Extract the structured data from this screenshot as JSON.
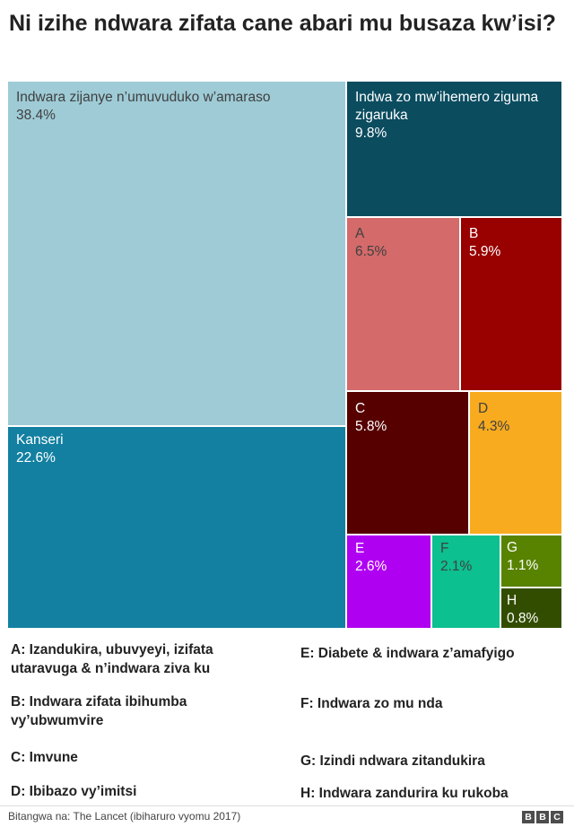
{
  "title": "Ni izihe ndwara zifata cane abari mu busaza kw’isi?",
  "chart_data": {
    "type": "treemap",
    "title": "Ni izihe ndwara zifata cane abari mu busaza kw’isi?",
    "unit": "%",
    "items": [
      {
        "id": "cardio",
        "label": "Indwara zijanye n’umuvuduko w’amaraso",
        "value": 38.4,
        "color": "#9ecbd6",
        "text": "light"
      },
      {
        "id": "cancer",
        "label": "Kanseri",
        "value": 22.6,
        "color": "#1380a1",
        "text": "dark"
      },
      {
        "id": "resp",
        "label": "Indwa zo mw’ihemero ziguma zigaruka",
        "value": 9.8,
        "color": "#0b4c5f",
        "text": "dark"
      },
      {
        "id": "A",
        "label": "A",
        "value": 6.5,
        "color": "#d46a6a",
        "text": "light"
      },
      {
        "id": "B",
        "label": "B",
        "value": 5.9,
        "color": "#990000",
        "text": "dark"
      },
      {
        "id": "C",
        "label": "C",
        "value": 5.8,
        "color": "#560000",
        "text": "dark"
      },
      {
        "id": "D",
        "label": "D",
        "value": 4.3,
        "color": "#f8ab1f",
        "text": "light"
      },
      {
        "id": "E",
        "label": "E",
        "value": 2.6,
        "color": "#b000f2",
        "text": "dark"
      },
      {
        "id": "F",
        "label": "F",
        "value": 2.1,
        "color": "#0cc090",
        "text": "light"
      },
      {
        "id": "G",
        "label": "G",
        "value": 1.1,
        "color": "#588300",
        "text": "dark"
      },
      {
        "id": "H",
        "label": "H",
        "value": 0.8,
        "color": "#334d00",
        "text": "dark"
      }
    ]
  },
  "legend": [
    {
      "key": "A",
      "text": "A: Izandukira, ubuvyeyi, izifata utaravuga & n’indwara ziva ku"
    },
    {
      "key": "B",
      "text": "B: Indwara zifata ibihumba vy’ubwumvire"
    },
    {
      "key": "C",
      "text": "C: Imvune"
    },
    {
      "key": "D",
      "text": "D: Ibibazo vy’imitsi"
    },
    {
      "key": "E",
      "text": "E: Diabete & indwara z’amafyigo"
    },
    {
      "key": "F",
      "text": "F: Indwara zo mu nda"
    },
    {
      "key": "G",
      "text": "G: Izindi ndwara zitandukira"
    },
    {
      "key": "H",
      "text": "H: Indwara zandurira ku rukoba"
    }
  ],
  "source": "Bitangwa na: The Lancet (ibiharuro vyomu 2017)",
  "logo": [
    "B",
    "B",
    "C"
  ]
}
